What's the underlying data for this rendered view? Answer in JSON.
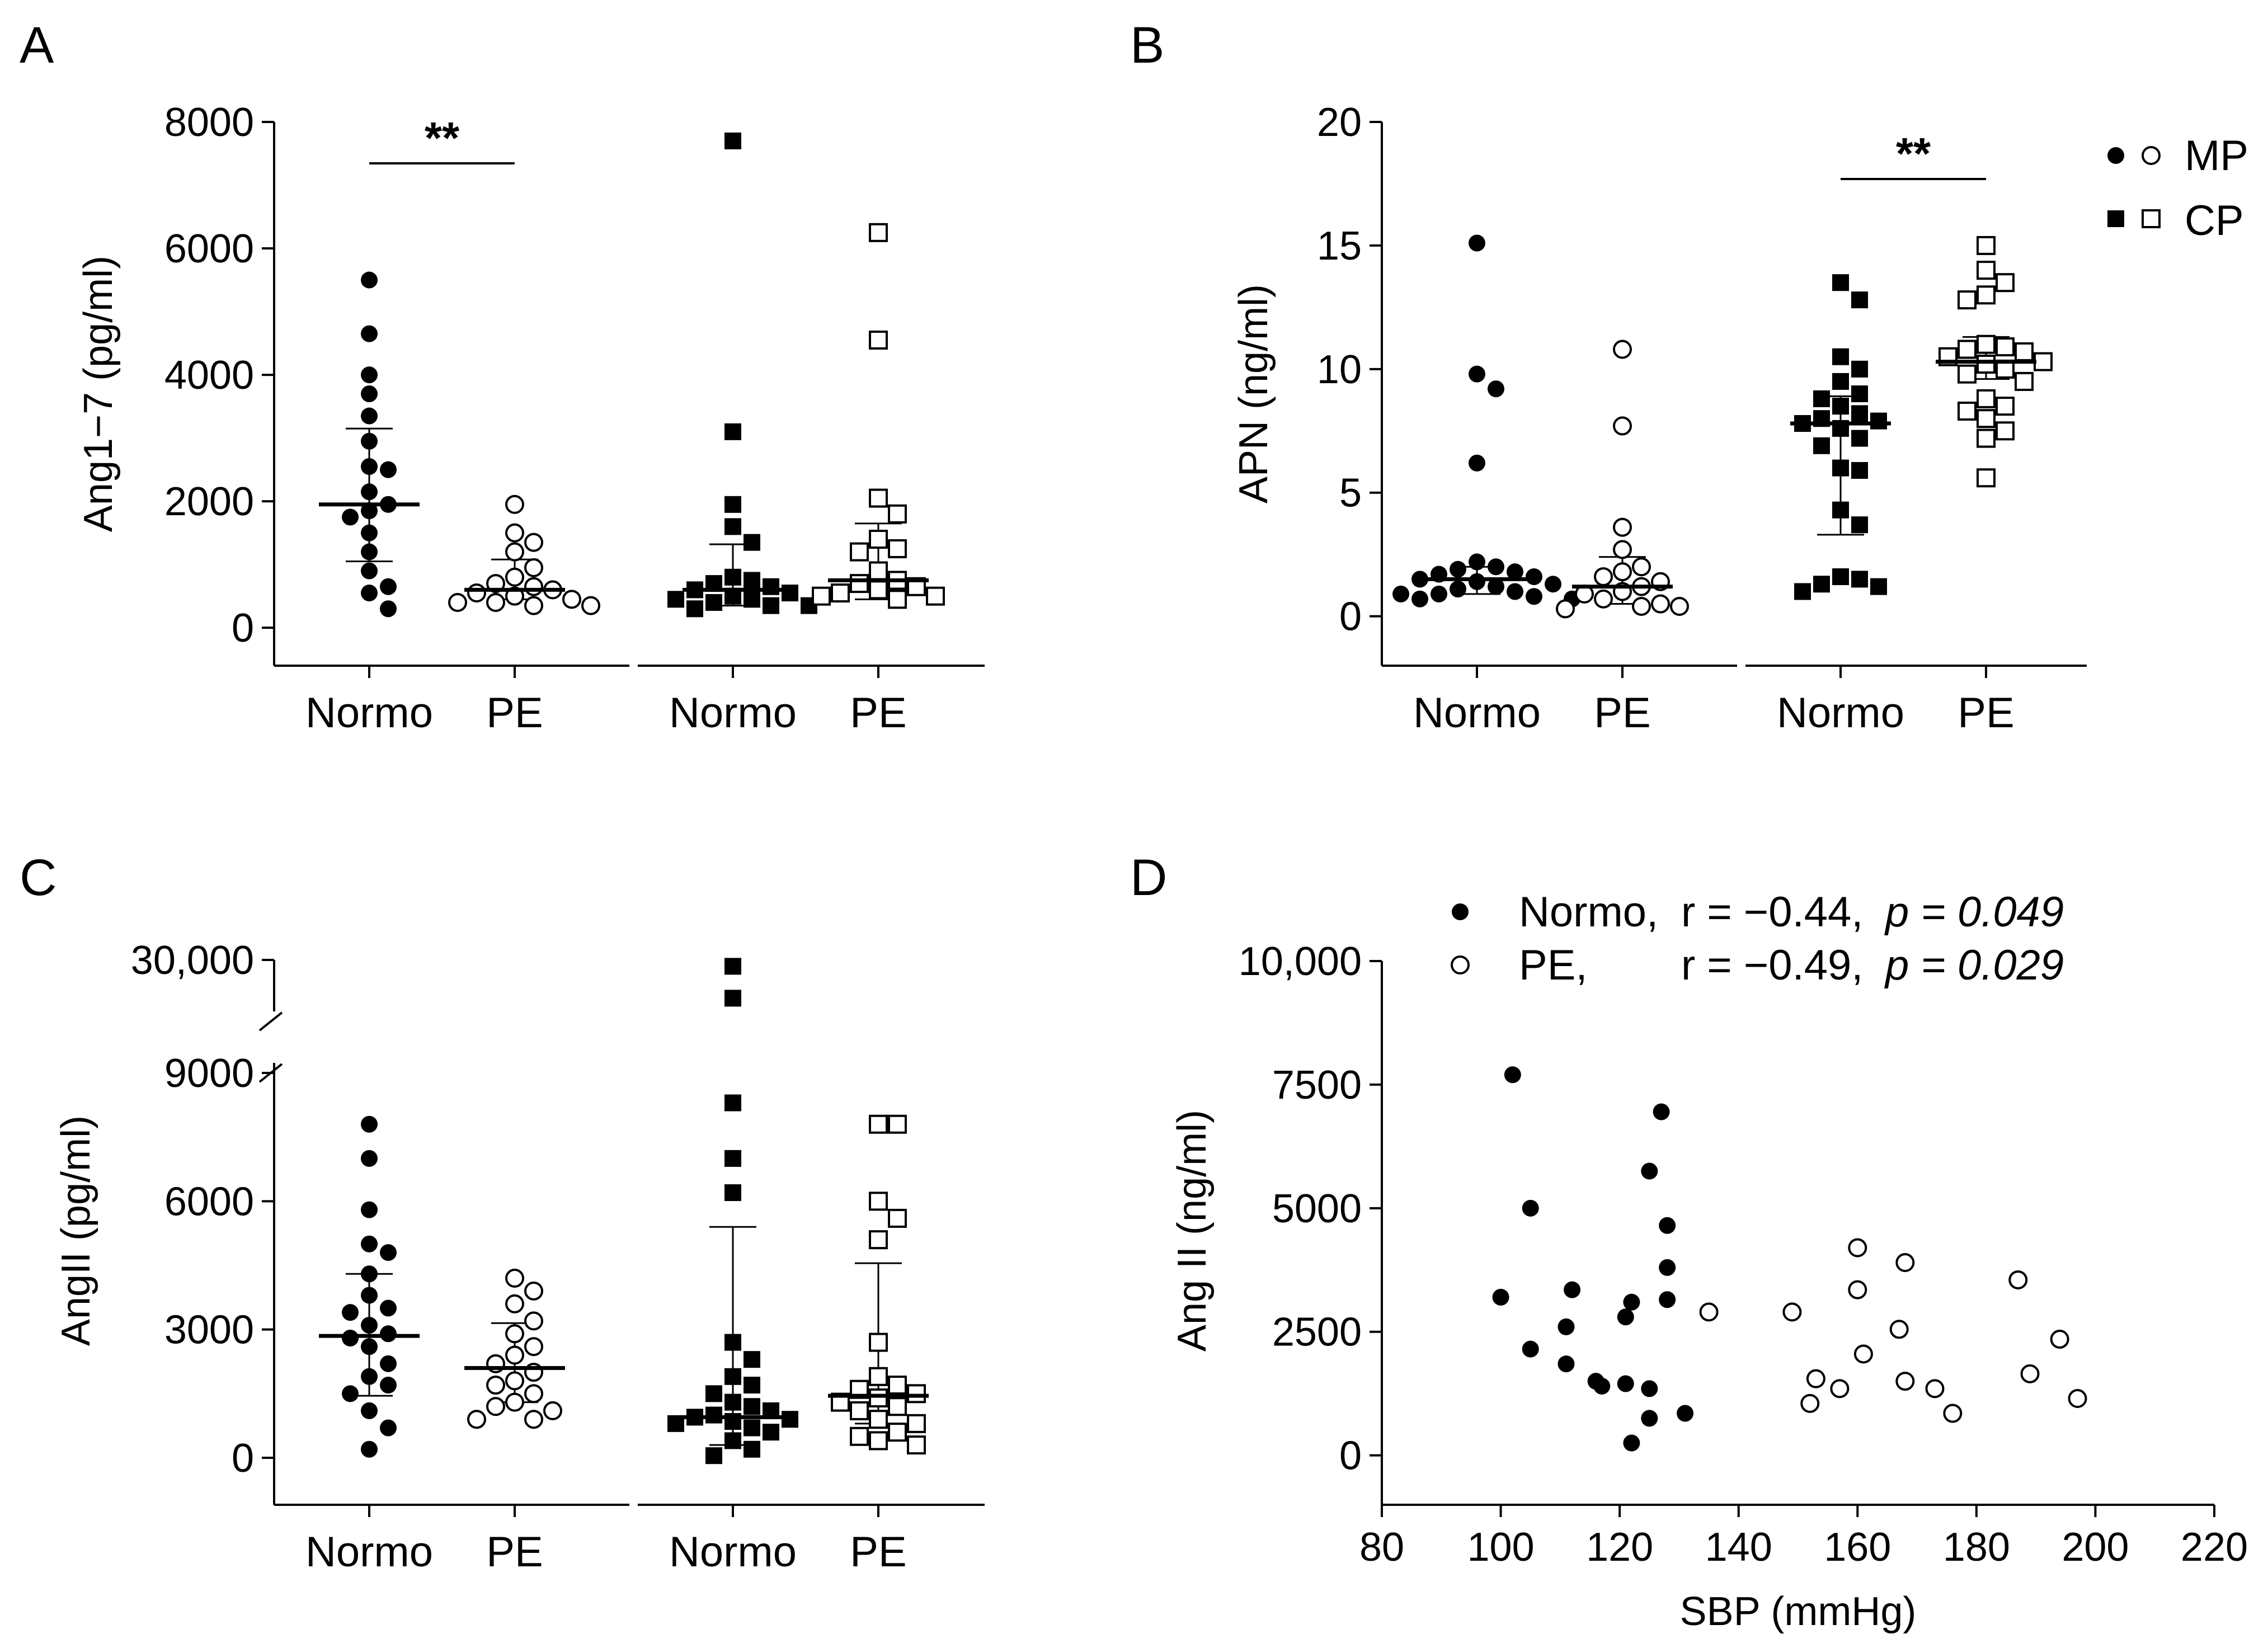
{
  "figure": {
    "panels": [
      {
        "letter": "A"
      },
      {
        "letter": "B"
      },
      {
        "letter": "C"
      },
      {
        "letter": "D"
      }
    ]
  },
  "legend_AB": {
    "items": [
      {
        "label": "MP",
        "filled": "circle",
        "open": "circle"
      },
      {
        "label": "CP",
        "filled": "square",
        "open": "square"
      }
    ]
  },
  "chart_data": [
    {
      "type": "scatter",
      "panel": "A",
      "ylabel": "Ang1−7 (pg/ml)",
      "ylim": [
        -600,
        8000
      ],
      "yticks": [
        "0",
        "2000",
        "4000",
        "6000",
        "8000"
      ],
      "categories": [
        "Normo",
        "PE",
        "Normo",
        "PE"
      ],
      "significance": [
        {
          "between": [
            "Normo",
            "PE"
          ],
          "group": "MP",
          "label": "**"
        }
      ],
      "series": [
        {
          "group": "MP",
          "category": "Normo",
          "marker": "filled-circle",
          "values": [
            5500,
            4650,
            4000,
            3700,
            3350,
            2950,
            2550,
            2500,
            2150,
            1950,
            1850,
            1750,
            1500,
            1200,
            900,
            650,
            550,
            300
          ],
          "mean": 1950,
          "sd_low": 1050,
          "sd_high": 3150
        },
        {
          "group": "MP",
          "category": "PE",
          "marker": "open-circle",
          "values": [
            1950,
            1500,
            1350,
            1200,
            950,
            800,
            700,
            650,
            600,
            550,
            500,
            450,
            400,
            400,
            350,
            350
          ],
          "mean": 600,
          "sd_low": 450,
          "sd_high": 1080
        },
        {
          "group": "CP",
          "category": "Normo",
          "marker": "filled-square",
          "values": [
            7700,
            3100,
            1950,
            1600,
            1350,
            800,
            750,
            700,
            650,
            600,
            550,
            500,
            450,
            450,
            400,
            350,
            350,
            300
          ],
          "mean": 600,
          "sd_low": 350,
          "sd_high": 1320
        },
        {
          "group": "CP",
          "category": "PE",
          "marker": "open-square",
          "values": [
            6250,
            4550,
            2050,
            1800,
            1400,
            1250,
            1200,
            900,
            750,
            700,
            650,
            600,
            550,
            500,
            500,
            450
          ],
          "mean": 750,
          "sd_low": 450,
          "sd_high": 1650
        }
      ]
    },
    {
      "type": "scatter",
      "panel": "B",
      "ylabel": "APN (ng/ml)",
      "ylim": [
        -2,
        20
      ],
      "yticks": [
        "0",
        "5",
        "10",
        "15",
        "20"
      ],
      "categories": [
        "Normo",
        "PE",
        "Normo",
        "PE"
      ],
      "significance": [
        {
          "between": [
            "Normo",
            "PE"
          ],
          "group": "CP",
          "label": "**"
        }
      ],
      "series": [
        {
          "group": "MP",
          "category": "Normo",
          "marker": "filled-circle",
          "values": [
            15.1,
            9.8,
            9.2,
            6.2,
            2.2,
            2.0,
            1.9,
            1.8,
            1.7,
            1.6,
            1.5,
            1.4,
            1.3,
            1.2,
            1.1,
            1.0,
            0.9,
            0.9,
            0.8,
            0.7,
            0.7
          ],
          "mean": 1.5,
          "sd_low": 0.9,
          "sd_high": 2.0
        },
        {
          "group": "MP",
          "category": "PE",
          "marker": "open-circle",
          "values": [
            10.8,
            7.7,
            3.6,
            2.7,
            2.0,
            1.8,
            1.6,
            1.4,
            1.2,
            1.0,
            0.9,
            0.7,
            0.5,
            0.4,
            0.4,
            0.3
          ],
          "mean": 1.2,
          "sd_low": 0.5,
          "sd_high": 2.4
        },
        {
          "group": "CP",
          "category": "Normo",
          "marker": "filled-square",
          "values": [
            13.5,
            12.8,
            10.5,
            10.0,
            9.5,
            9.0,
            8.8,
            8.5,
            8.2,
            8.0,
            7.9,
            7.8,
            7.6,
            7.2,
            6.9,
            6.0,
            5.9,
            4.3,
            3.7,
            1.6,
            1.5,
            1.3,
            1.2,
            1.0
          ],
          "mean": 7.8,
          "sd_low": 3.3,
          "sd_high": 8.9
        },
        {
          "group": "CP",
          "category": "PE",
          "marker": "open-square",
          "values": [
            15.0,
            14.0,
            13.5,
            13.0,
            12.8,
            11.0,
            10.9,
            10.8,
            10.7,
            10.5,
            10.3,
            10.2,
            10.0,
            9.8,
            9.5,
            8.8,
            8.5,
            8.3,
            8.0,
            7.5,
            7.2,
            5.6
          ],
          "mean": 10.3,
          "sd_low": 9.6,
          "sd_high": 11.3
        }
      ]
    },
    {
      "type": "scatter",
      "panel": "C",
      "ylabel": "AngII (pg/ml)",
      "ylim": [
        -1000,
        30000
      ],
      "yticks": [
        "0",
        "3000",
        "6000",
        "9000",
        "30,000"
      ],
      "axis_break": {
        "lower_top": 9000,
        "upper_bottom": 10000,
        "upper_top": 30000
      },
      "categories": [
        "Normo",
        "PE",
        "Normo",
        "PE"
      ],
      "series": [
        {
          "group": "MP",
          "category": "Normo",
          "marker": "filled-circle",
          "values": [
            7800,
            7000,
            5800,
            5000,
            4800,
            4300,
            3800,
            3500,
            3400,
            3100,
            2900,
            2800,
            2600,
            2200,
            1900,
            1700,
            1500,
            1100,
            700,
            200
          ],
          "mean": 2850,
          "sd_low": 1450,
          "sd_high": 4300
        },
        {
          "group": "MP",
          "category": "PE",
          "marker": "open-circle",
          "values": [
            4200,
            3900,
            3600,
            3200,
            2900,
            2600,
            2400,
            2200,
            2000,
            1800,
            1700,
            1500,
            1300,
            1200,
            1100,
            900,
            900
          ],
          "mean": 2100,
          "sd_low": 1300,
          "sd_high": 3150
        },
        {
          "group": "CP",
          "category": "Normo",
          "marker": "filled-square",
          "values": [
            28500,
            21000,
            8300,
            7000,
            6200,
            2700,
            2300,
            1900,
            1700,
            1500,
            1300,
            1200,
            1100,
            1000,
            950,
            900,
            850,
            800,
            700,
            600,
            400,
            200,
            50
          ],
          "mean": 950,
          "sd_low": 300,
          "sd_high": 5400
        },
        {
          "group": "CP",
          "category": "PE",
          "marker": "open-square",
          "values": [
            7800,
            7800,
            6000,
            5600,
            5100,
            2700,
            1900,
            1700,
            1600,
            1500,
            1400,
            1300,
            1200,
            1100,
            900,
            800,
            600,
            500,
            400,
            300
          ],
          "mean": 1450,
          "sd_low": 800,
          "sd_high": 4550
        }
      ]
    },
    {
      "type": "scatter",
      "panel": "D",
      "xlabel": "SBP (mmHg)",
      "ylabel": "Ang II (ng/ml)",
      "xlim": [
        80,
        220
      ],
      "ylim": [
        -1000,
        10000
      ],
      "xticks": [
        "80",
        "100",
        "120",
        "140",
        "160",
        "180",
        "200",
        "220"
      ],
      "yticks": [
        "0",
        "2500",
        "5000",
        "7500",
        "10,000"
      ],
      "legend": [
        {
          "name": "Normo,",
          "stat": "r = −0.44,",
          "p_label": "p = 0.049",
          "marker": "filled-circle"
        },
        {
          "name": "PE,",
          "stat": "r = −0.49,",
          "p_label": "p = 0.029",
          "marker": "open-circle"
        }
      ],
      "series": [
        {
          "name": "Normo",
          "marker": "filled-circle",
          "points": [
            [
              102,
              7700
            ],
            [
              105,
              5000
            ],
            [
              100,
              3200
            ],
            [
              112,
              3350
            ],
            [
              105,
              2150
            ],
            [
              111,
              2600
            ],
            [
              111,
              1850
            ],
            [
              116,
              1500
            ],
            [
              117,
              1400
            ],
            [
              121,
              2800
            ],
            [
              122,
              3100
            ],
            [
              121,
              1450
            ],
            [
              122,
              250
            ],
            [
              125,
              1350
            ],
            [
              125,
              750
            ],
            [
              125,
              5750
            ],
            [
              127,
              6950
            ],
            [
              128,
              4650
            ],
            [
              128,
              3800
            ],
            [
              128,
              3150
            ],
            [
              131,
              850
            ]
          ]
        },
        {
          "name": "PE",
          "marker": "open-circle",
          "points": [
            [
              135,
              2900
            ],
            [
              149,
              2900
            ],
            [
              152,
              1050
            ],
            [
              153,
              1550
            ],
            [
              157,
              1350
            ],
            [
              160,
              4200
            ],
            [
              160,
              3350
            ],
            [
              161,
              2050
            ],
            [
              167,
              2550
            ],
            [
              168,
              3900
            ],
            [
              168,
              1500
            ],
            [
              173,
              1350
            ],
            [
              176,
              850
            ],
            [
              187,
              3550
            ],
            [
              189,
              1650
            ],
            [
              194,
              2350
            ],
            [
              197,
              1150
            ]
          ]
        }
      ]
    }
  ]
}
